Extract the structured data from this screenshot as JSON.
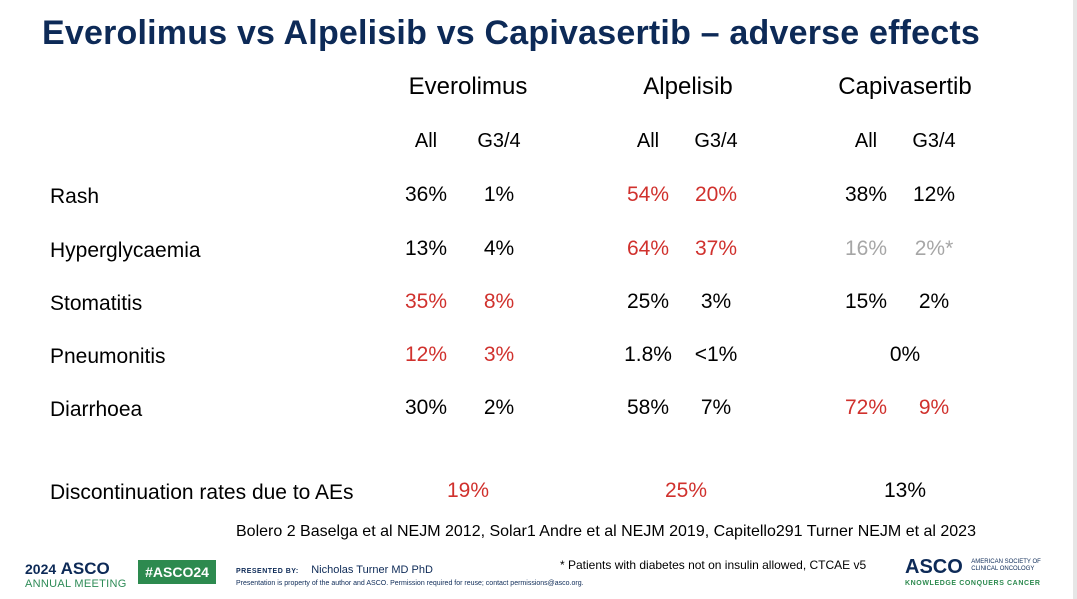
{
  "title": "Everolimus vs Alpelisib vs Capivasertib – adverse effects",
  "drugs": [
    "Everolimus",
    "Alpelisib",
    "Capivasertib"
  ],
  "sub_headers": {
    "all": "All",
    "g34": "G3/4"
  },
  "rows": [
    {
      "label": "Rash",
      "values": [
        "36%",
        "1%",
        "54%",
        "20%",
        "38%",
        "12%"
      ],
      "styles": [
        "n",
        "n",
        "red",
        "red",
        "n",
        "n"
      ]
    },
    {
      "label": "Hyperglycaemia",
      "values": [
        "13%",
        "4%",
        "64%",
        "37%",
        "16%",
        "2%*"
      ],
      "styles": [
        "n",
        "n",
        "red",
        "red",
        "grey",
        "grey"
      ]
    },
    {
      "label": "Stomatitis",
      "values": [
        "35%",
        "8%",
        "25%",
        "3%",
        "15%",
        "2%"
      ],
      "styles": [
        "red",
        "red",
        "n",
        "n",
        "n",
        "n"
      ]
    },
    {
      "label": "Pneumonitis",
      "values": [
        "12%",
        "3%",
        "1.8%",
        "<1%",
        "0%"
      ],
      "styles": [
        "red",
        "red",
        "n",
        "n",
        "n"
      ]
    },
    {
      "label": "Diarrhoea",
      "values": [
        "30%",
        "2%",
        "58%",
        "7%",
        "72%",
        "9%"
      ],
      "styles": [
        "n",
        "n",
        "n",
        "n",
        "red",
        "red"
      ]
    }
  ],
  "discontinuation": {
    "label": "Discontinuation rates due to AEs",
    "values": [
      "19%",
      "25%",
      "13%"
    ],
    "styles": [
      "red",
      "red",
      "n"
    ]
  },
  "references": "Bolero 2 Baselga et al NEJM 2012, Solar1 Andre et al NEJM 2019, Capitello291 Turner NEJM et al 2023",
  "footer": {
    "meeting_year": "2024",
    "meeting_brand": "ASCO",
    "meeting_name": "ANNUAL MEETING",
    "hashtag": "#ASCO24",
    "presented_by_label": "PRESENTED BY:",
    "presenter": "Nicholas Turner MD PhD",
    "property_notice": "Presentation is property of the author and ASCO. Permission required for reuse; contact permissions@asco.org.",
    "footnote": "* Patients with diabetes not on insulin allowed, CTCAE v5",
    "asco_logo": "ASCO",
    "asco_society": "AMERICAN SOCIETY OF CLINICAL ONCOLOGY",
    "asco_tagline": "KNOWLEDGE CONQUERS CANCER"
  },
  "colors": {
    "title": "#0d2a57",
    "highlight": "#d0312d",
    "muted": "#a6a6a6",
    "green": "#2d8a4f"
  }
}
